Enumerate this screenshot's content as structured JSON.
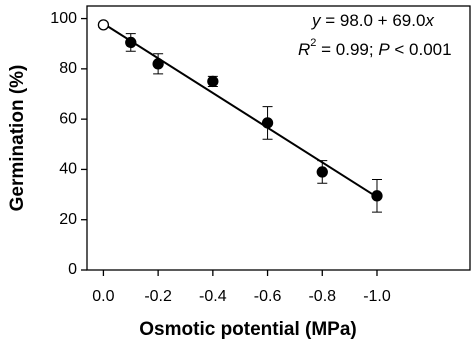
{
  "chart_data": {
    "type": "scatter",
    "x_label": "Osmotic potential (MPa)",
    "y_label": "Germination (%)",
    "x": [
      0,
      -0.1,
      -0.2,
      -0.4,
      -0.6,
      -0.8,
      -1.0
    ],
    "values": [
      97.5,
      90.5,
      82,
      75,
      58.5,
      39,
      29.5
    ],
    "errors": [
      1,
      3.5,
      4,
      2,
      6.5,
      4.5,
      6.5
    ],
    "filled": [
      false,
      true,
      true,
      true,
      true,
      true,
      true
    ],
    "color": "#000000",
    "fit": {
      "x": [
        0,
        -1.0
      ],
      "y": [
        98,
        29
      ]
    },
    "annotation": [
      [
        "y",
        " = 98.0 + 69.0",
        "x"
      ],
      [
        "R",
        "2",
        " = 0.99; ",
        "P",
        " < 0.001"
      ]
    ],
    "xlim": [
      0.06,
      -1.34
    ],
    "ylim": [
      0,
      105
    ],
    "xticks": [
      {
        "value": 0,
        "label": "0.0"
      },
      -0.2,
      -0.4,
      -0.6,
      -0.8,
      {
        "value": -1.0,
        "label": "-1.0"
      }
    ],
    "yticks": [
      0,
      20,
      40,
      60,
      80,
      100
    ]
  }
}
